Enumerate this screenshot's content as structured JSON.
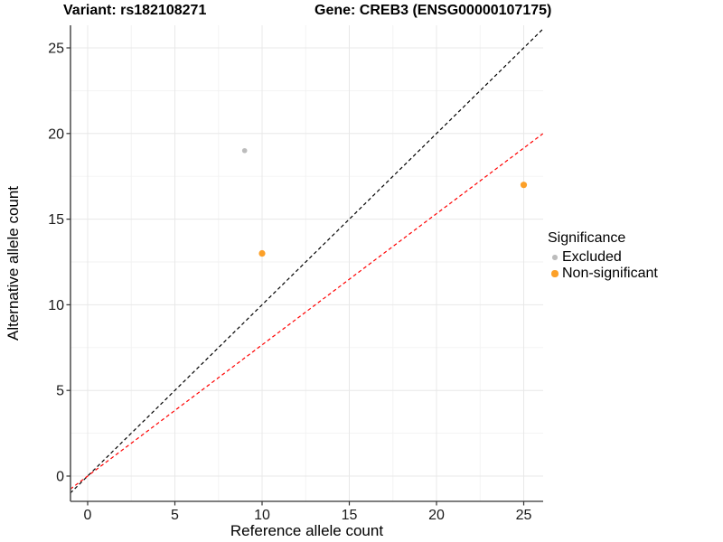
{
  "chart_data": {
    "type": "scatter",
    "title_left": "Variant: rs182108271",
    "title_right": "Gene: CREB3 (ENSG00000107175)",
    "xlabel": "Reference allele count",
    "ylabel": "Alternative allele count",
    "xlim": [
      -1.0,
      26.1
    ],
    "ylim": [
      -1.5,
      26.3
    ],
    "x_ticks": [
      0,
      5,
      10,
      15,
      20,
      25
    ],
    "y_ticks": [
      0,
      5,
      10,
      15,
      20,
      25
    ],
    "x_minor_ticks": [
      2.5,
      7.5,
      12.5,
      17.5,
      22.5
    ],
    "y_minor_ticks": [
      2.5,
      7.5,
      12.5,
      17.5,
      22.5
    ],
    "grid": true,
    "legend_position": "right",
    "points": [
      {
        "x": 9,
        "y": 19,
        "significance": "Excluded",
        "color": "#bcbcbc",
        "radius": 2.8
      },
      {
        "x": 10,
        "y": 13,
        "significance": "Non-significant",
        "color": "#fca028",
        "radius": 3.6
      },
      {
        "x": 25,
        "y": 17,
        "significance": "Non-significant",
        "color": "#fca028",
        "radius": 3.6
      }
    ],
    "lines": [
      {
        "name": "identity-line",
        "slope": 1.0,
        "intercept": 0,
        "color": "#000000",
        "style": "dashed"
      },
      {
        "name": "fit-line",
        "slope": 0.766,
        "intercept": 0,
        "color": "#ff0000",
        "style": "dashed"
      }
    ],
    "legend": {
      "title": "Significance",
      "entries": [
        {
          "label": "Excluded",
          "color": "#bcbcbc",
          "radius": 2.8
        },
        {
          "label": "Non-significant",
          "color": "#fca028",
          "radius": 3.6
        }
      ]
    },
    "colors": {
      "background": "#ffffff",
      "axis_line": "#555555",
      "tick_mark": "#333333",
      "tick_label": "#1a1a1a",
      "grid_major": "#e8e8e8",
      "grid_minor": "#f2f2f2",
      "excluded": "#bcbcbc",
      "non_significant": "#fca028",
      "identity_line": "#000000",
      "fit_line": "#ff0000"
    }
  }
}
